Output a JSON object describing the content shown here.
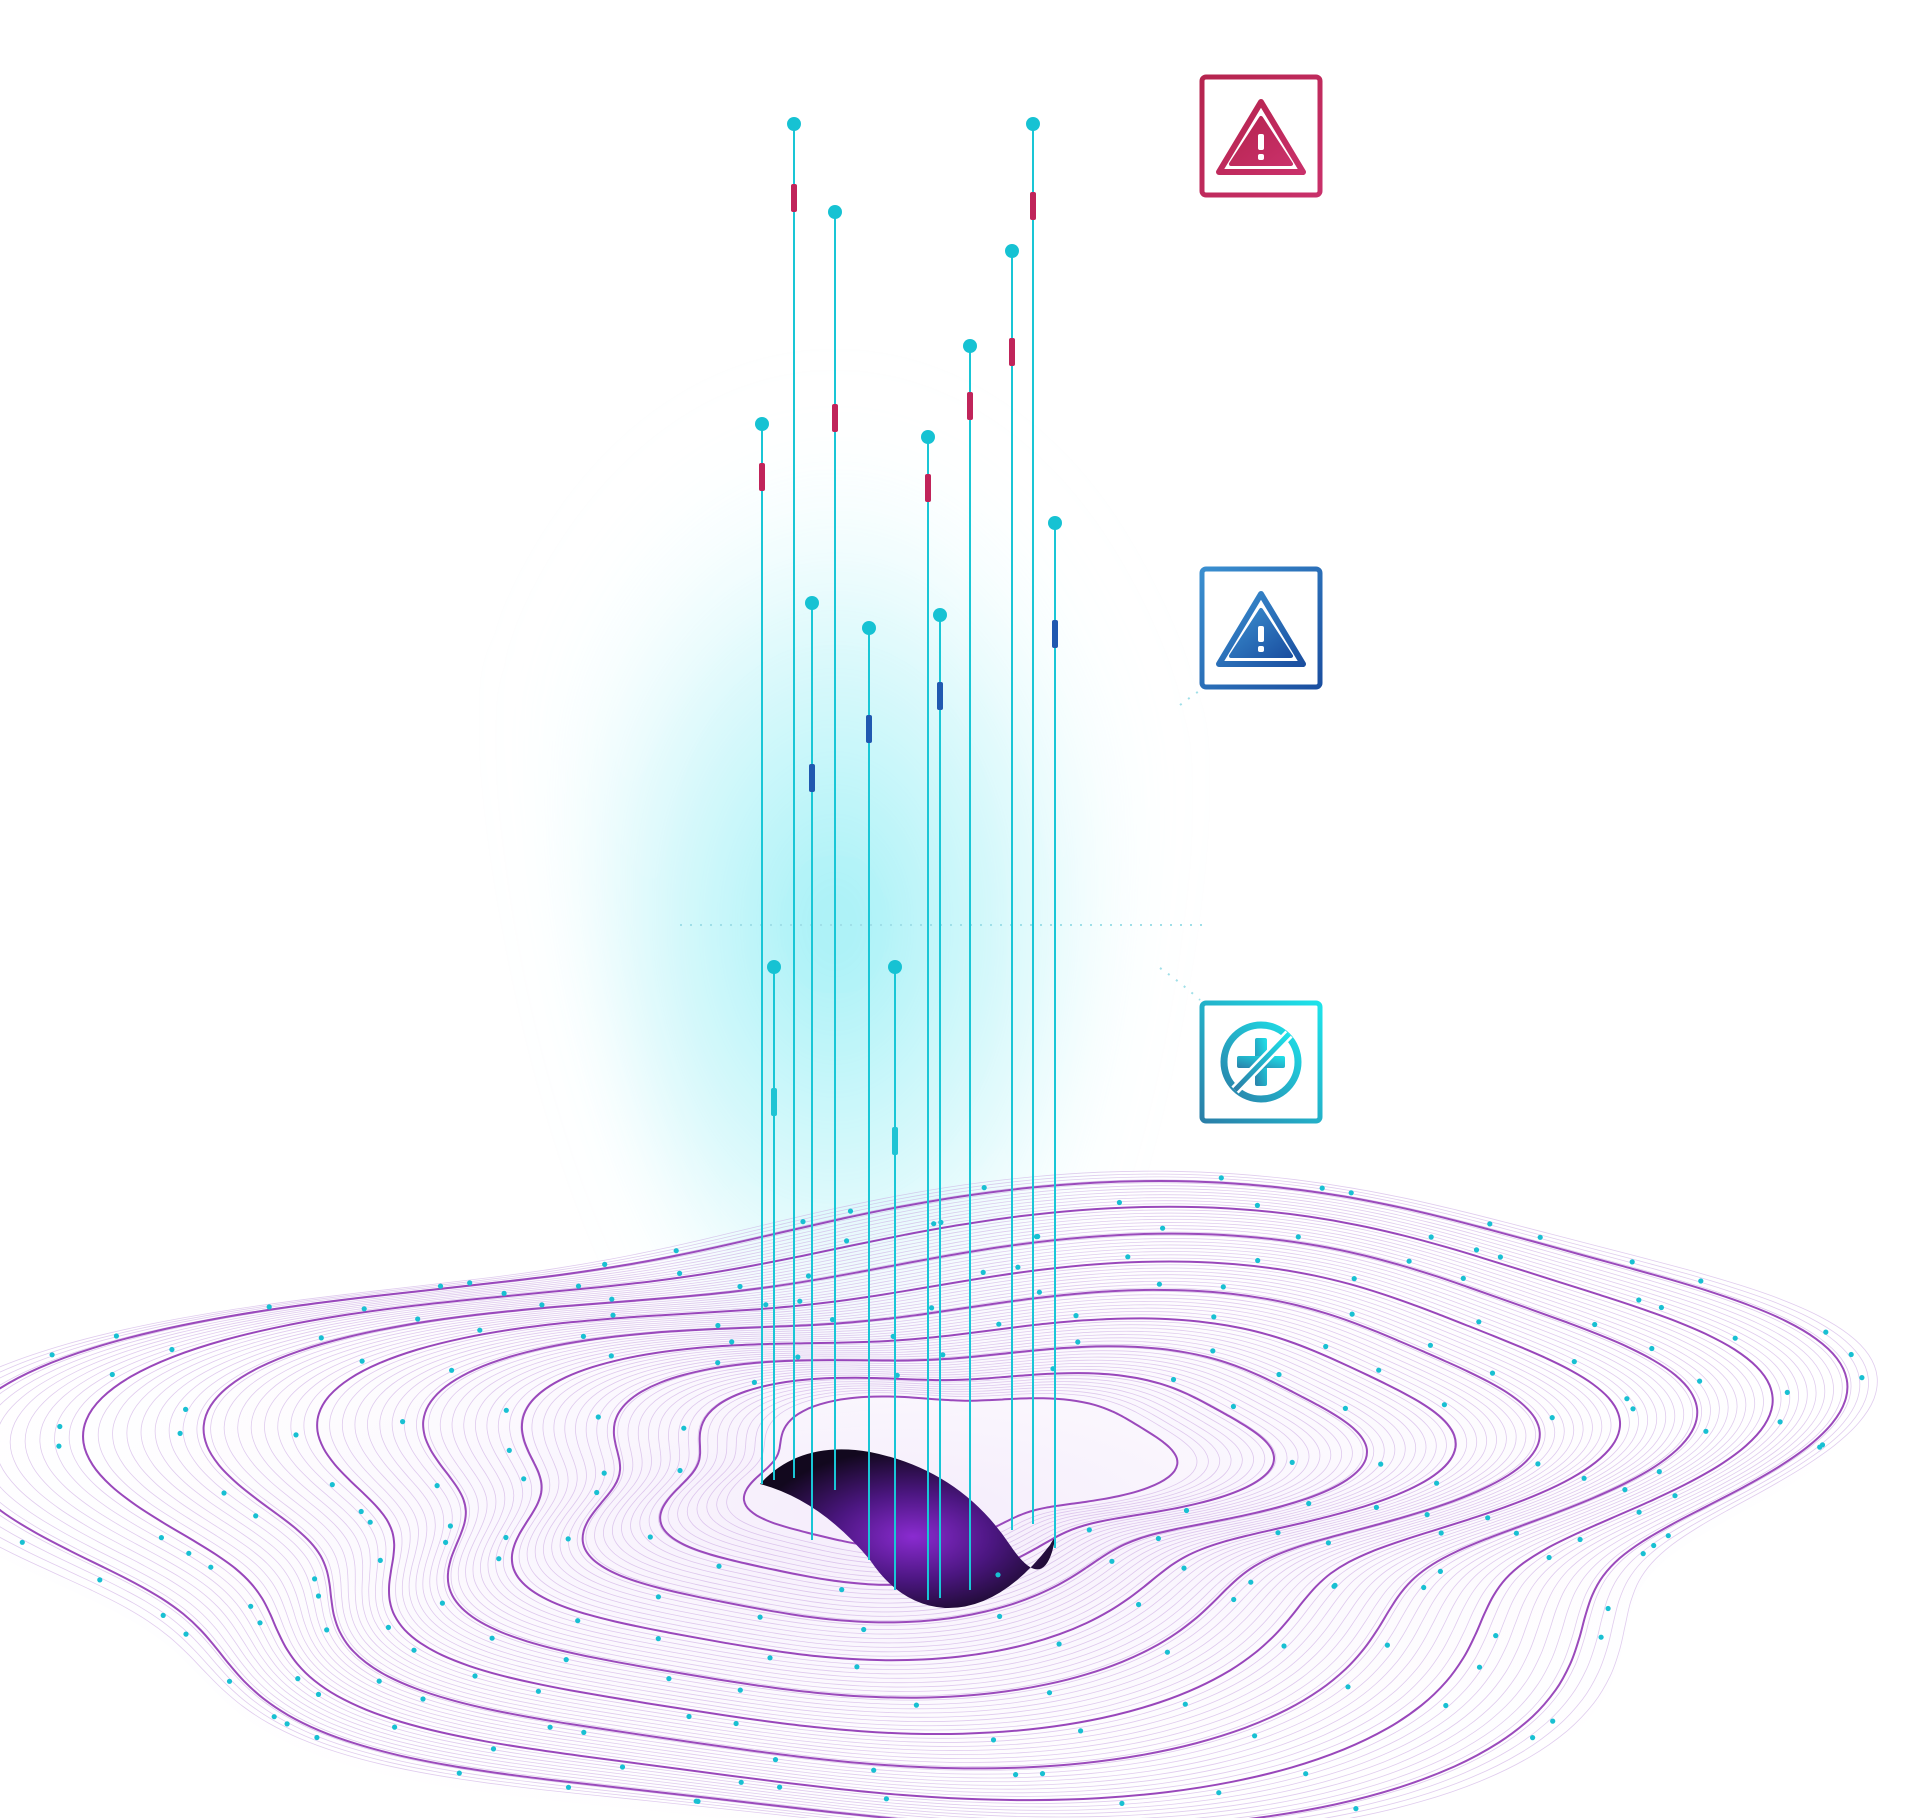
{
  "colors": {
    "background": "#ffffff",
    "stem": "#19c6d6",
    "head": "#16c2d3",
    "marker_high": "#c0245a",
    "marker_medium": "#2058b0",
    "marker_low": "#1fc4d4",
    "glow": "#4fe3ee",
    "terrain_line": "#8a2bb0",
    "terrain_fine": "#c7a2e0",
    "pit_core": "#7a24b5",
    "pit_edge": "#1a0a2a",
    "dot": "#18c0d2"
  },
  "legend": [
    {
      "icon": "warning-triangle-icon",
      "level": "high",
      "gradient": [
        "#b5244e",
        "#c9306a"
      ]
    },
    {
      "icon": "warning-triangle-icon",
      "level": "medium",
      "gradient": [
        "#3a8fd0",
        "#1b4fa0"
      ]
    },
    {
      "icon": "no-bug-icon",
      "level": "low",
      "gradient": [
        "#2a7fa8",
        "#1de3ea"
      ]
    }
  ],
  "pins": [
    {
      "level": "high"
    },
    {
      "level": "high"
    },
    {
      "level": "high"
    },
    {
      "level": "high"
    },
    {
      "level": "high"
    },
    {
      "level": "high"
    },
    {
      "level": "high"
    },
    {
      "level": "medium"
    },
    {
      "level": "medium"
    },
    {
      "level": "medium"
    },
    {
      "level": "medium"
    },
    {
      "level": "low"
    },
    {
      "level": "low"
    }
  ]
}
